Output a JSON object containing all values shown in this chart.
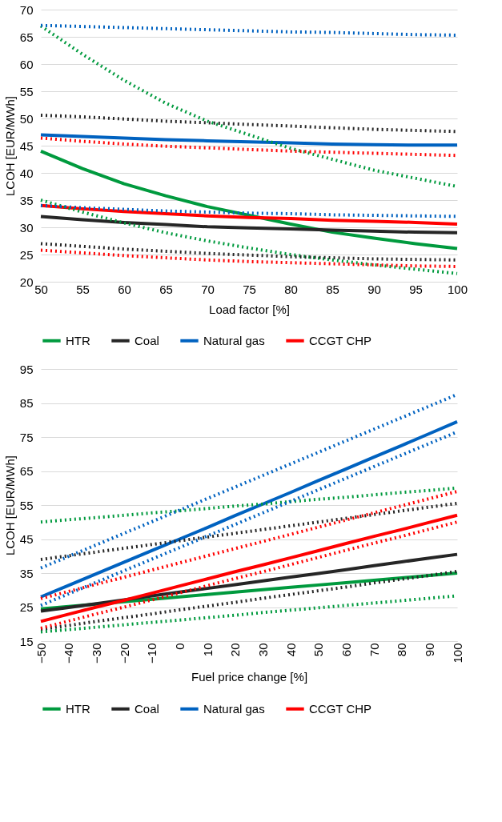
{
  "chart_data": [
    {
      "type": "line",
      "xlabel": "Load factor [%]",
      "ylabel": "LCOH [EUR/MWh]",
      "x": [
        50,
        55,
        60,
        65,
        70,
        75,
        80,
        85,
        90,
        95,
        100
      ],
      "xlim": [
        50,
        100
      ],
      "xticks": [
        50,
        55,
        60,
        65,
        70,
        75,
        80,
        85,
        90,
        95,
        100
      ],
      "ylim": [
        20,
        70
      ],
      "yticks": [
        20,
        25,
        30,
        35,
        40,
        45,
        50,
        55,
        60,
        65,
        70
      ],
      "grid": "y",
      "legend": "bottom",
      "series": [
        {
          "name": "HTR",
          "color": "#009a3e",
          "line_style": "solid",
          "values": [
            44,
            40.8,
            38,
            35.8,
            33.8,
            32.2,
            30.6,
            29.1,
            28,
            27,
            26.1
          ]
        },
        {
          "name": "Coal",
          "color": "#262626",
          "line_style": "solid",
          "values": [
            32,
            31.4,
            30.9,
            30.5,
            30.1,
            29.9,
            29.7,
            29.5,
            29.3,
            29.1,
            29
          ]
        },
        {
          "name": "Natural gas",
          "color": "#0062c0",
          "line_style": "solid",
          "values": [
            47,
            46.7,
            46.4,
            46.1,
            45.9,
            45.7,
            45.5,
            45.3,
            45.2,
            45.1,
            45.1
          ]
        },
        {
          "name": "CCGT CHP",
          "color": "#ff0000",
          "line_style": "solid",
          "values": [
            34,
            33.4,
            32.9,
            32.5,
            32.1,
            31.8,
            31.6,
            31.3,
            31.1,
            30.9,
            30.6
          ]
        },
        {
          "color": "#009a3e",
          "line_style": "dotted",
          "values": [
            67,
            61.8,
            57,
            52.8,
            49.5,
            47,
            44.5,
            42.5,
            40.5,
            39,
            37.5
          ]
        },
        {
          "color": "#009a3e",
          "line_style": "dotted",
          "values": [
            35,
            32.8,
            30.8,
            29,
            27.5,
            26.2,
            25,
            24,
            23.1,
            22.3,
            21.5
          ]
        },
        {
          "color": "#262626",
          "line_style": "dotted",
          "values": [
            50.6,
            50.3,
            49.9,
            49.5,
            49.2,
            48.9,
            48.6,
            48.3,
            48,
            47.8,
            47.6
          ]
        },
        {
          "color": "#262626",
          "line_style": "dotted",
          "values": [
            27,
            26.5,
            26,
            25.6,
            25.2,
            24.9,
            24.6,
            24.4,
            24.2,
            24.1,
            24
          ]
        },
        {
          "color": "#0062c0",
          "line_style": "dotted",
          "values": [
            67.1,
            66.9,
            66.7,
            66.5,
            66.3,
            66.1,
            65.9,
            65.8,
            65.6,
            65.4,
            65.3
          ]
        },
        {
          "color": "#0062c0",
          "line_style": "dotted",
          "values": [
            34,
            33.6,
            33.3,
            33,
            32.8,
            32.6,
            32.5,
            32.3,
            32.2,
            32.1,
            32
          ]
        },
        {
          "color": "#ff0000",
          "line_style": "dotted",
          "values": [
            46.4,
            45.8,
            45.3,
            44.9,
            44.6,
            44.3,
            44,
            43.8,
            43.6,
            43.4,
            43.2
          ]
        },
        {
          "color": "#ff0000",
          "line_style": "dotted",
          "values": [
            25.8,
            25.3,
            24.8,
            24.4,
            24,
            23.7,
            23.5,
            23.3,
            23.1,
            22.9,
            22.8
          ]
        }
      ]
    },
    {
      "type": "line",
      "xlabel": "Fuel price change [%]",
      "ylabel": "LCOH [EUR/MWh]",
      "x": [
        -50,
        -40,
        -30,
        -20,
        -10,
        0,
        10,
        20,
        30,
        40,
        50,
        60,
        70,
        80,
        90,
        100
      ],
      "xlim": [
        -50,
        100
      ],
      "xticks": [
        -50,
        -40,
        -30,
        -20,
        -10,
        0,
        10,
        20,
        30,
        40,
        50,
        60,
        70,
        80,
        90,
        100
      ],
      "ylim": [
        15,
        95
      ],
      "yticks": [
        15,
        25,
        35,
        45,
        55,
        65,
        75,
        85,
        95
      ],
      "grid": "y",
      "legend": "bottom",
      "series": [
        {
          "name": "HTR",
          "color": "#009a3e",
          "line_style": "solid",
          "values": [
            24.5,
            25.2,
            25.9,
            26.6,
            27.3,
            28,
            28.7,
            29.4,
            30.1,
            30.8,
            31.5,
            32.2,
            32.9,
            33.6,
            34.3,
            35
          ]
        },
        {
          "name": "Coal",
          "color": "#262626",
          "line_style": "solid",
          "values": [
            23.8,
            24.9,
            26.0,
            27.1,
            28.3,
            29.4,
            30.5,
            31.6,
            32.7,
            33.8,
            34.9,
            36.0,
            37.2,
            38.3,
            39.4,
            40.5
          ]
        },
        {
          "name": "Natural gas",
          "color": "#0062c0",
          "line_style": "solid",
          "values": [
            28,
            31.4,
            34.8,
            38.2,
            41.6,
            45,
            48.4,
            51.9,
            55.3,
            58.7,
            62.2,
            65.6,
            69.1,
            72.5,
            76,
            79.5
          ]
        },
        {
          "name": "CCGT CHP",
          "color": "#ff0000",
          "line_style": "solid",
          "values": [
            20.8,
            22.9,
            25.0,
            27.0,
            29.1,
            31.2,
            33.3,
            35.4,
            37.4,
            39.5,
            41.6,
            43.7,
            45.8,
            47.8,
            49.9,
            52
          ]
        },
        {
          "color": "#009a3e",
          "line_style": "dotted",
          "values": [
            50,
            50.7,
            51.3,
            52,
            52.7,
            53.3,
            54,
            54.7,
            55.3,
            56,
            56.7,
            57.3,
            58,
            58.7,
            59.3,
            60
          ]
        },
        {
          "color": "#009a3e",
          "line_style": "dotted",
          "values": [
            17.7,
            18.4,
            19.1,
            19.8,
            20.5,
            21.2,
            21.9,
            22.6,
            23.4,
            24.1,
            24.8,
            25.5,
            26.2,
            26.9,
            27.6,
            28.3
          ]
        },
        {
          "color": "#262626",
          "line_style": "dotted",
          "values": [
            39,
            40.1,
            41.2,
            42.3,
            43.4,
            44.5,
            45.6,
            46.7,
            47.8,
            48.9,
            50,
            51.1,
            52.2,
            53.3,
            54.4,
            55.5
          ]
        },
        {
          "color": "#262626",
          "line_style": "dotted",
          "values": [
            18.5,
            19.6,
            20.8,
            21.9,
            23.0,
            24.2,
            25.3,
            26.4,
            27.6,
            28.7,
            29.8,
            30.9,
            32.1,
            33.2,
            34.3,
            35.5
          ]
        },
        {
          "color": "#0062c0",
          "line_style": "dotted",
          "values": [
            36.5,
            39.9,
            43.3,
            46.7,
            50.1,
            53.5,
            56.9,
            60.3,
            63.7,
            67.1,
            70.5,
            73.9,
            77.3,
            80.7,
            84.1,
            87.5
          ]
        },
        {
          "color": "#0062c0",
          "line_style": "dotted",
          "values": [
            25.5,
            28.9,
            32.3,
            35.7,
            39.1,
            42.5,
            45.9,
            49.3,
            52.7,
            56.1,
            59.5,
            62.9,
            66.3,
            69.7,
            73.1,
            76.5
          ]
        },
        {
          "color": "#ff0000",
          "line_style": "dotted",
          "values": [
            27.5,
            29.6,
            31.7,
            33.8,
            35.9,
            38,
            40.1,
            42.2,
            44.3,
            46.4,
            48.5,
            50.6,
            52.7,
            54.8,
            56.9,
            59
          ]
        },
        {
          "color": "#ff0000",
          "line_style": "dotted",
          "values": [
            18.8,
            20.9,
            23.0,
            25.0,
            27.1,
            29.2,
            31.3,
            33.4,
            35.4,
            37.5,
            39.6,
            41.7,
            43.8,
            45.8,
            47.9,
            50
          ]
        }
      ]
    }
  ]
}
